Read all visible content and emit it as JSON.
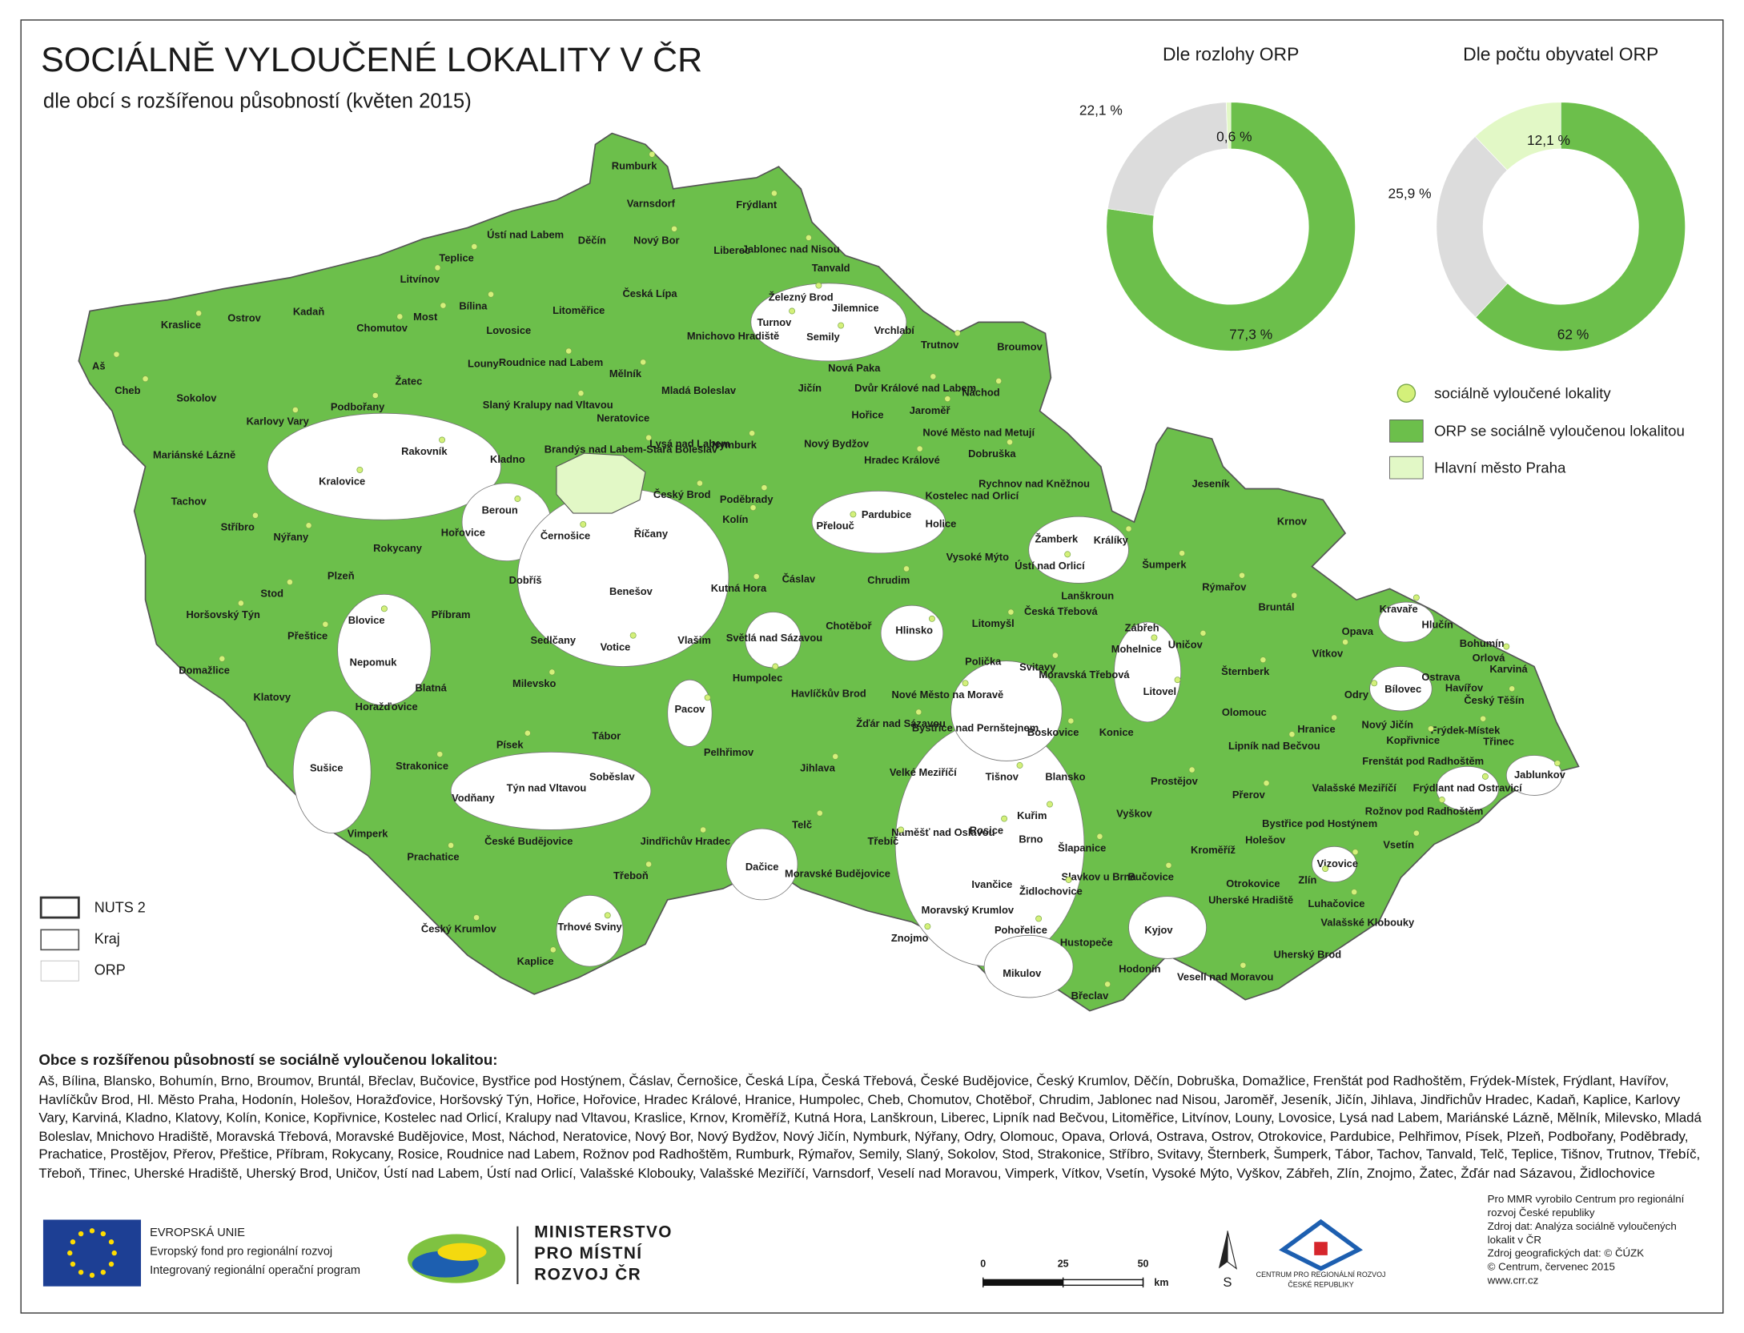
{
  "header": {
    "title": "SOCIÁLNĚ VYLOUČENÉ LOKALITY V ČR",
    "subtitle": "dle obcí s rozšířenou působností (květen 2015)"
  },
  "chart_data": [
    {
      "type": "donut",
      "title": "Dle rozlohy ORP",
      "values": [
        77.3,
        22.1,
        0.6
      ],
      "value_labels": [
        "77,3 %",
        "22,1 %",
        "0,6 %"
      ],
      "colors": [
        "#6cbf4b",
        "#dcdcdc",
        "#e2f8c6"
      ]
    },
    {
      "type": "donut",
      "title": "Dle počtu obyvatel ORP",
      "values": [
        62,
        25.9,
        12.1
      ],
      "value_labels": [
        "62 %",
        "25,9 %",
        "12,1 %"
      ],
      "colors": [
        "#6cbf4b",
        "#dcdcdc",
        "#e2f8c6"
      ]
    }
  ],
  "legend": {
    "items": [
      "sociálně vyloučené lokality",
      "ORP se sociálně vyloučenou lokalitou",
      "Hlavní město Praha"
    ]
  },
  "boundary_legend": {
    "items": [
      "NUTS 2",
      "Kraj",
      "ORP"
    ]
  },
  "map": {
    "labels": [
      "Rumburk",
      "Varnsdorf",
      "Frýdlant",
      "Děčín",
      "Nový Bor",
      "Ústí nad Labem",
      "Teplice",
      "Liberec",
      "Jablonec nad Nisou",
      "Tanvald",
      "Litvínov",
      "Česká Lípa",
      "Železný Brod",
      "Jilemnice",
      "Bílina",
      "Kadaň",
      "Most",
      "Litoměřice",
      "Kraslice",
      "Ostrov",
      "Chomutov",
      "Lovosice",
      "Turnov",
      "Vrchlabí",
      "Semily",
      "Mnichovo Hradiště",
      "Trutnov",
      "Broumov",
      "Roudnice nad Labem",
      "Louny",
      "Aš",
      "Nová Paka",
      "Mělník",
      "Žatec",
      "Dvůr Králové nad Labem",
      "Jičín",
      "Cheb",
      "Mladá Boleslav",
      "Náchod",
      "Sokolov",
      "Podbořany",
      "Slaný",
      "Kralupy nad Vltavou",
      "Hořice",
      "Jaroměř",
      "Neratovice",
      "Karlovy Vary",
      "Nové Město nad Metují",
      "Brandýs nad Labem-Stará Boleslav",
      "Lysá nad Labem",
      "Nymburk",
      "Nový Bydžov",
      "Rakovník",
      "Mariánské Lázně",
      "Dobruška",
      "Kladno",
      "Hradec Králové",
      "Jeseník",
      "Kralovice",
      "Rychnov nad Kněžnou",
      "Poděbrady",
      "Kostelec nad Orlicí",
      "Český Brod",
      "Tachov",
      "Beroun",
      "Krnov",
      "Kolín",
      "Pardubice",
      "Přelouč",
      "Holice",
      "Stříbro",
      "Říčany",
      "Nýřany",
      "Hořovice",
      "Černošice",
      "Žamberk",
      "Králíky",
      "Rokycany",
      "Šumperk",
      "Vysoké Mýto",
      "Ústí nad Orlicí",
      "Dobříš",
      "Kutná Hora",
      "Čáslav",
      "Chrudim",
      "Plzeň",
      "Rýmařov",
      "Benešov",
      "Stod",
      "Lanškroun",
      "Bruntál",
      "Příbram",
      "Horšovský Týn",
      "Česká Třebová",
      "Litomyšl",
      "Zábřeh",
      "Kravaře",
      "Hlučín",
      "Blovice",
      "Chotěboř",
      "Hlinsko",
      "Světlá nad Sázavou",
      "Uničov",
      "Opava",
      "Přeštice",
      "Sedlčany",
      "Votice",
      "Vlašim",
      "Mohelnice",
      "Bohumín",
      "Orlová",
      "Karviná",
      "Vítkov",
      "Nepomuk",
      "Domažlice",
      "Polička",
      "Svitavy",
      "Moravská Třebová",
      "Šternberk",
      "Ostrava",
      "Humpolec",
      "Blatná",
      "Milevsko",
      "Havlíčkův Brod",
      "Nové Město na Moravě",
      "Bílovec",
      "Litovel",
      "Havířov",
      "Český Těšín",
      "Klatovy",
      "Odry",
      "Horažďovice",
      "Pacov",
      "Olomouc",
      "Žďár nad Sázavou",
      "Bystřice nad Pernštejnem",
      "Boskovice",
      "Konice",
      "Hranice",
      "Nový Jičín",
      "Frýdek-Místek",
      "Tábor",
      "Kopřivnice",
      "Třinec",
      "Písek",
      "Pelhřimov",
      "Lipník nad Bečvou",
      "Frenštát pod Radhoštěm",
      "Strakonice",
      "Sušice",
      "Jihlava",
      "Velké Meziříčí",
      "Tišnov",
      "Blansko",
      "Prostějov",
      "Soběslav",
      "Jablunkov",
      "Týn nad Vltavou",
      "Frýdlant nad Ostravicí",
      "Valašské Meziříčí",
      "Přerov",
      "Vodňany",
      "Kuřim",
      "Vyškov",
      "Rožnov pod Radhoštěm",
      "Bystřice pod Hostýnem",
      "Telč",
      "Vimperk",
      "Rosice",
      "Náměšť nad Oslavou",
      "Třebíč",
      "České Budějovice",
      "Jindřichův Hradec",
      "Brno",
      "Šlapanice",
      "Holešov",
      "Vsetín",
      "Kroměříž",
      "Prachatice",
      "Dačice",
      "Vizovice",
      "Moravské Budějovice",
      "Třeboň",
      "Slavkov u Brna",
      "Bučovice",
      "Ivančice",
      "Židlochovice",
      "Otrokovice",
      "Zlín",
      "Uherské Hradiště",
      "Luhačovice",
      "Moravský Krumlov",
      "Trhové Sviny",
      "Valašské Klobouky",
      "Pohořelice",
      "Kyjov",
      "Český Krumlov",
      "Hustopeče",
      "Znojmo",
      "Uherský Brod",
      "Kaplice",
      "Hodonín",
      "Veselí nad Moravou",
      "Mikulov",
      "Břeclav"
    ]
  },
  "list": {
    "title": "Obce s rozšířenou působností se sociálně vyloučenou lokalitou:",
    "text": "Aš, Bílina, Blansko, Bohumín, Brno, Broumov, Bruntál, Břeclav, Bučovice, Bystřice pod Hostýnem, Čáslav, Černošice, Česká Lípa, Česká Třebová, České Budějovice, Český Krumlov, Děčín, Dobruška, Domažlice, Frenštát pod Radhoštěm, Frýdek-Místek, Frýdlant, Havířov, Havlíčkův Brod, Hl. Město Praha, Hodonín, Holešov, Horažďovice, Horšovský Týn, Hořice, Hořovice, Hradec Králové, Hranice, Humpolec, Cheb, Chomutov, Chotěboř, Chrudim, Jablonec nad Nisou, Jaroměř, Jeseník, Jičín, Jihlava, Jindřichův Hradec, Kadaň, Kaplice, Karlovy Vary, Karviná, Kladno, Klatovy, Kolín, Konice, Kopřivnice, Kostelec nad Orlicí, Kralupy nad Vltavou, Kraslice, Krnov, Kroměříž, Kutná Hora, Lanškroun, Liberec, Lipník nad Bečvou, Litoměřice, Litvínov, Louny, Lovosice, Lysá nad Labem, Mariánské Lázně, Mělník, Milevsko, Mladá Boleslav, Mnichovo Hradiště, Moravská Třebová, Moravské Budějovice, Most, Náchod, Neratovice, Nový Bor, Nový Bydžov, Nový Jičín, Nymburk, Nýřany, Odry, Olomouc, Opava, Orlová, Ostrava, Ostrov, Otrokovice, Pardubice, Pelhřimov, Písek, Plzeň, Podbořany, Poděbrady, Prachatice, Prostějov, Přerov, Přeštice, Příbram, Rokycany, Rosice, Roudnice nad Labem, Rožnov pod Radhoštěm, Rumburk, Rýmařov, Semily, Slaný, Sokolov, Stod, Strakonice, Stříbro, Svitavy, Šternberk, Šumperk, Tábor, Tachov, Tanvald, Telč, Teplice, Tišnov, Trutnov, Třebíč, Třeboň, Třinec, Uherské Hradiště, Uherský Brod, Uničov, Ústí nad Labem, Ústí nad Orlicí, Valašské Klobouky, Valašské Meziříčí, Varnsdorf, Veselí nad Moravou, Vimperk, Vítkov, Vsetín, Vysoké Mýto, Vyškov, Zábřeh, Zlín, Znojmo, Žatec, Žďár nad Sázavou, Židlochovice"
  },
  "footer": {
    "eu": [
      "EVROPSKÁ UNIE",
      "Evropský fond pro regionální rozvoj",
      "Integrovaný regionální operační program"
    ],
    "ministry": [
      "MINISTERSTVO",
      "PRO MÍSTNÍ",
      "ROZVOJ ČR"
    ],
    "scale": {
      "ticks": [
        0,
        25,
        50
      ],
      "unit": "km"
    },
    "north": "S",
    "crr": [
      "CENTRUM PRO REGIONÁLNÍ ROZVOJ",
      "ČESKÉ REPUBLIKY"
    ],
    "credits": [
      "Pro MMR vyrobilo Centrum pro regionální",
      "rozvoj České republiky",
      "Zdroj dat: Analýza sociálně vyloučených",
      "lokalit v ČR",
      "Zdroj geografických dat: © ČÚZK",
      "© Centrum, červenec 2015",
      "www.crr.cz"
    ]
  }
}
